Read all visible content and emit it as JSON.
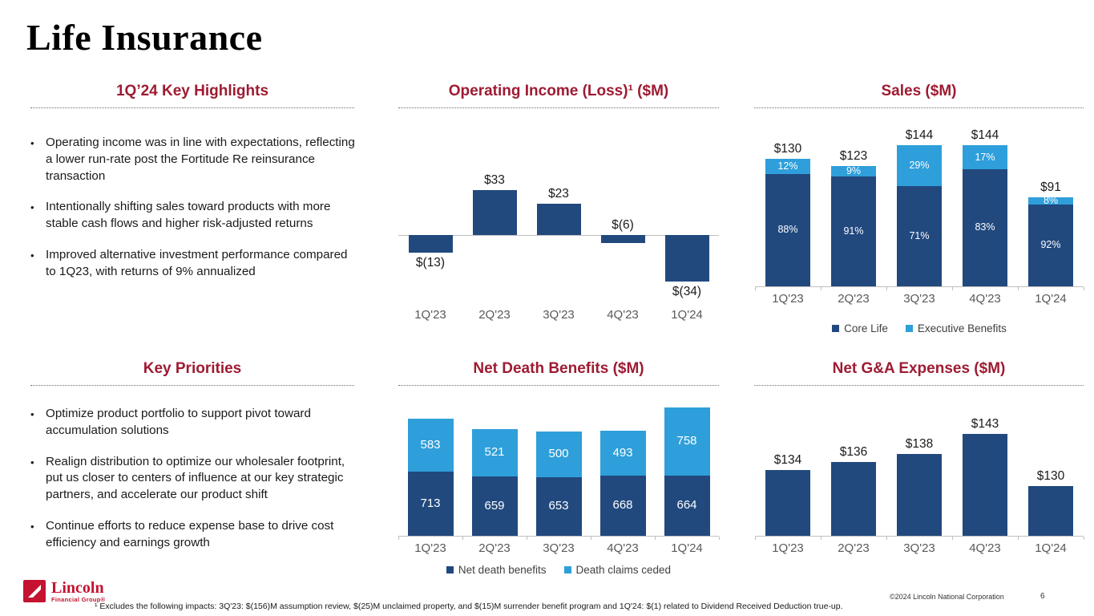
{
  "slide": {
    "title": "Life Insurance",
    "page_number": "6",
    "copyright": "©2024 Lincoln National Corporation",
    "footnote": "¹ Excludes the following impacts: 3Q'23: $(156)M assumption review, $(25)M unclaimed property, and $(15)M surrender benefit program and 1Q'24: $(1) related to Dividend Received Deduction true-up.",
    "logo": {
      "primary": "Lincoln",
      "secondary": "Financial Group®"
    }
  },
  "colors": {
    "header_maroon": "#9E1B32",
    "dark_blue": "#21497E",
    "light_blue": "#2E9FDA",
    "logo_red": "#C41230",
    "axis_gray": "#BFBFBF",
    "label_gray": "#595959",
    "text_dark": "#1a1a1a"
  },
  "highlights": {
    "title": "1Q’24 Key Highlights",
    "bullets": [
      "Operating income was in line with expectations, reflecting a lower run-rate post the Fortitude Re reinsurance transaction",
      "Intentionally shifting sales toward products with more stable cash flows and higher risk-adjusted returns",
      "Improved alternative investment performance compared to 1Q23, with returns of 9% annualized"
    ]
  },
  "priorities": {
    "title": "Key Priorities",
    "bullets": [
      "Optimize product portfolio to support pivot toward accumulation solutions",
      "Realign distribution to optimize our wholesaler footprint, put us closer to centers of influence at our key strategic partners, and accelerate our product shift",
      "Continue efforts to reduce expense base to drive cost efficiency and earnings growth"
    ]
  },
  "chart_data": [
    {
      "id": "operating_income",
      "type": "bar",
      "title": "Operating Income (Loss)¹ ($M)",
      "categories": [
        "1Q'23",
        "2Q'23",
        "3Q'23",
        "4Q'23",
        "1Q'24"
      ],
      "values": [
        -13,
        33,
        23,
        -6,
        -34
      ],
      "labels": [
        "$(13)",
        "$33",
        "$23",
        "$(6)",
        "$(34)"
      ],
      "label_side": [
        "below",
        "above",
        "above",
        "above",
        "below"
      ],
      "bar_color": "#21497E",
      "ylabel": "",
      "ylim": [
        -40,
        40
      ],
      "grid": false
    },
    {
      "id": "sales",
      "type": "stacked-bar",
      "title": "Sales ($M)",
      "categories": [
        "1Q'23",
        "2Q'23",
        "3Q'23",
        "4Q'23",
        "1Q'24"
      ],
      "totals": [
        130,
        123,
        144,
        144,
        91
      ],
      "total_labels": [
        "$130",
        "$123",
        "$144",
        "$144",
        "$91"
      ],
      "series": [
        {
          "name": "Core Life",
          "color": "#21497E",
          "values": [
            114.4,
            111.9,
            102.2,
            119.5,
            83.7
          ],
          "percent": [
            88,
            91,
            71,
            83,
            92
          ],
          "labels": [
            "88%",
            "91%",
            "71%",
            "83%",
            "92%"
          ]
        },
        {
          "name": "Executive Benefits",
          "color": "#2E9FDA",
          "values": [
            15.6,
            11.1,
            41.8,
            24.5,
            7.3
          ],
          "percent": [
            12,
            9,
            29,
            17,
            8
          ],
          "labels": [
            "12%",
            "9%",
            "29%",
            "17%",
            "8%"
          ]
        }
      ],
      "legend": [
        "Core Life",
        "Executive Benefits"
      ],
      "legend_position": "bottom",
      "ylim": [
        0,
        160
      ],
      "grid": false
    },
    {
      "id": "net_death_benefits",
      "type": "stacked-bar",
      "title": "Net Death Benefits ($M)",
      "categories": [
        "1Q'23",
        "2Q'23",
        "3Q'23",
        "4Q'23",
        "1Q'24"
      ],
      "totals": [
        1296,
        1180,
        1153,
        1161,
        1422
      ],
      "series": [
        {
          "name": "Net death benefits",
          "color": "#21497E",
          "values": [
            713,
            659,
            653,
            668,
            664
          ],
          "labels": [
            "713",
            "659",
            "653",
            "668",
            "664"
          ]
        },
        {
          "name": "Death claims ceded",
          "color": "#2E9FDA",
          "values": [
            583,
            521,
            500,
            493,
            758
          ],
          "labels": [
            "583",
            "521",
            "500",
            "493",
            "758"
          ]
        }
      ],
      "legend": [
        "Net death benefits",
        "Death claims ceded"
      ],
      "legend_position": "bottom",
      "ylim": [
        0,
        1500
      ],
      "grid": false
    },
    {
      "id": "net_ga",
      "type": "bar",
      "title": "Net G&A Expenses ($M)",
      "categories": [
        "1Q'23",
        "2Q'23",
        "3Q'23",
        "4Q'23",
        "1Q'24"
      ],
      "values": [
        134,
        136,
        138,
        143,
        130
      ],
      "labels": [
        "$134",
        "$136",
        "$138",
        "$143",
        "$130"
      ],
      "label_side": [
        "above",
        "above",
        "above",
        "above",
        "above"
      ],
      "bar_color": "#21497E",
      "ylim": [
        117,
        148
      ],
      "grid": false
    }
  ]
}
